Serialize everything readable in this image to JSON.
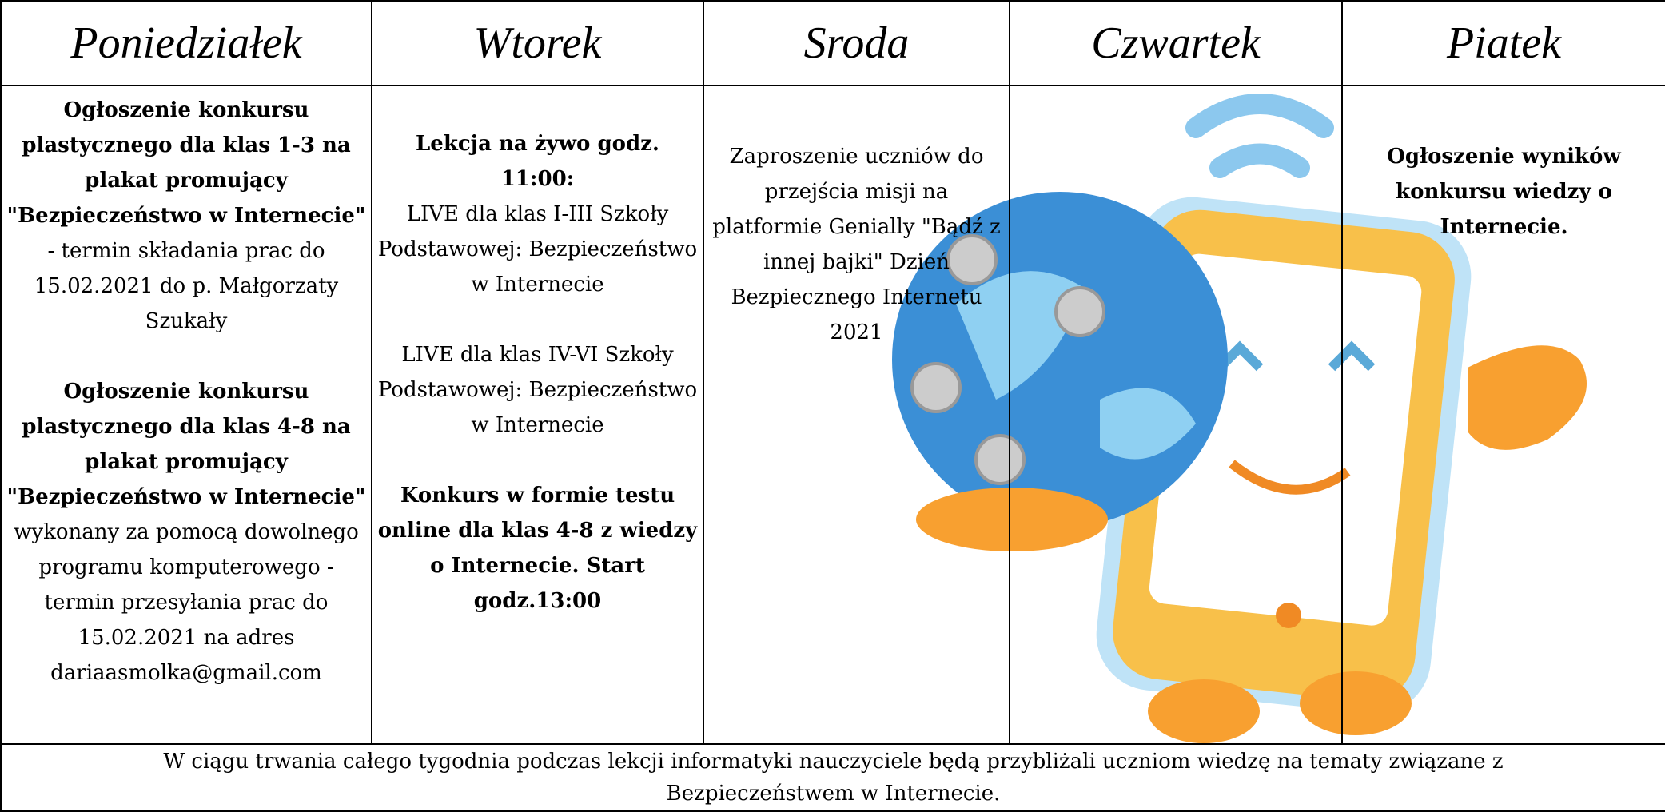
{
  "header": {
    "days": [
      "Poniedziałek",
      "Wtorek",
      "Sroda",
      "Czwartek",
      "Piatek"
    ]
  },
  "cells": [
    [
      [
        {
          "text": "Ogłoszenie konkursu plastycznego dla klas 1-3 na plakat promujący \"Bezpieczeństwo w Internecie\"",
          "bold": true
        },
        {
          "text": " - termin składania prac do 15.02.2021 do p. Małgorzaty Szukały",
          "bold": false
        }
      ],
      [
        {
          "text": "Ogłoszenie konkursu plastycznego dla klas 4-8 na plakat promujący \"Bezpieczeństwo w Internecie\"",
          "bold": true
        },
        {
          "text": " wykonany za pomocą dowolnego programu komputerowego - termin przesyłania prac do 15.02.2021 na adres dariaasmolka@gmail.com",
          "bold": false
        }
      ]
    ],
    [
      [
        {
          "text": "Lekcja na żywo godz. 11:00:",
          "bold": true
        }
      ],
      [
        {
          "text": "LIVE dla klas I-III Szkoły Podstawowej: Bezpieczeństwo w Internecie",
          "bold": false
        }
      ],
      [
        {
          "text": "LIVE dla klas IV-VI Szkoły Podstawowej: Bezpieczeństwo w Internecie",
          "bold": false
        }
      ],
      [
        {
          "text": "Konkurs w formie testu online dla klas 4-8 z wiedzy o Internecie. Start godz.13:00",
          "bold": true
        }
      ]
    ],
    [
      [
        {
          "text": "Zaproszenie uczniów do przejścia misji na platformie Genially \"Bądź z innej bajki\" Dzień Bezpiecznego Internetu 2021",
          "bold": false
        }
      ]
    ],
    [],
    [
      [
        {
          "text": "Ogłoszenie wyników konkursu wiedzy o Internecie.",
          "bold": true
        }
      ]
    ]
  ],
  "footer": "W ciągu trwania całego tygodnia podczas lekcji informatyki nauczyciele będą przybliżali uczniom wiedzę na tematy związane z Bezpieczeństwem w Internecie."
}
